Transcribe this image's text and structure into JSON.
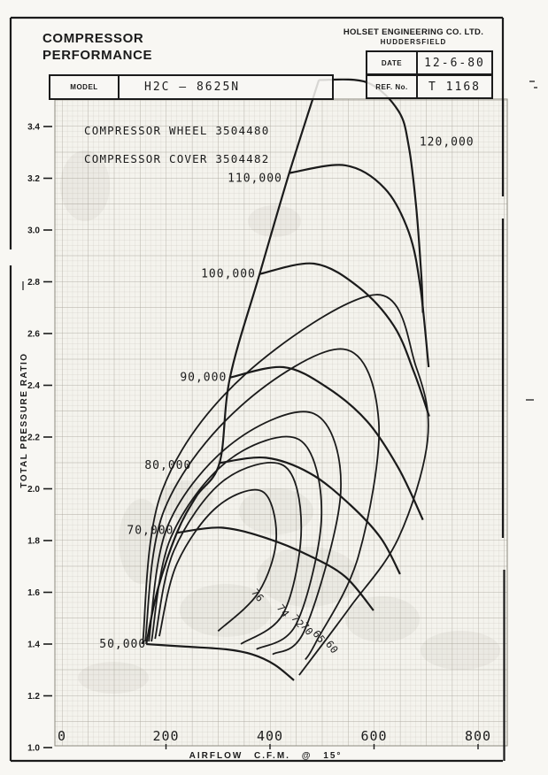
{
  "header": {
    "title_line1": "COMPRESSOR",
    "title_line2": "PERFORMANCE",
    "model_label": "MODEL",
    "model_value": "H2C — 8625N",
    "company_line1": "HOLSET ENGINEERING CO. LTD.",
    "company_line2": "HUDDERSFIELD",
    "date_label": "DATE",
    "date_value": "12-6-80",
    "ref_label": "REF. No.",
    "ref_value": "T 1168"
  },
  "chart_data": {
    "type": "line",
    "title": "Compressor performance map",
    "annotations": [
      "COMPRESSOR  WHEEL  3504480",
      "COMPRESSOR  COVER  3504482"
    ],
    "xlabel": "AIRFLOW   C.F.M.  @  15°",
    "ylabel": "TOTAL  PRESSURE  RATIO",
    "xlim": [
      0,
      850
    ],
    "ylim": [
      1.0,
      3.5
    ],
    "grid": true,
    "x_ticks": [
      {
        "label": "0",
        "value": 0
      },
      {
        "label": "200",
        "value": 200
      },
      {
        "label": "400",
        "value": 400
      },
      {
        "label": "600",
        "value": 600
      },
      {
        "label": "800",
        "value": 800
      }
    ],
    "y_ticks": [
      {
        "label": "1.0",
        "value": 1.0
      },
      {
        "label": "1.2",
        "value": 1.2
      },
      {
        "label": "1.4",
        "value": 1.4
      },
      {
        "label": "1.6",
        "value": 1.6
      },
      {
        "label": "1.8",
        "value": 1.8
      },
      {
        "label": "2.0",
        "value": 2.0
      },
      {
        "label": "2.2",
        "value": 2.2
      },
      {
        "label": "2.4",
        "value": 2.4
      },
      {
        "label": "2.6",
        "value": 2.6
      },
      {
        "label": "2.8",
        "value": 2.8
      },
      {
        "label": "3.0",
        "value": 3.0
      },
      {
        "label": "3.2",
        "value": 3.2
      },
      {
        "label": "3.4",
        "value": 3.4
      }
    ],
    "surge_line": {
      "points": [
        [
          162,
          1.4
        ],
        [
          184,
          1.61
        ],
        [
          221,
          1.83
        ],
        [
          258,
          1.97
        ],
        [
          303,
          2.1
        ],
        [
          323,
          2.43
        ],
        [
          380,
          2.83
        ],
        [
          437,
          3.22
        ],
        [
          494,
          3.58
        ]
      ]
    },
    "speed_lines": [
      {
        "rpm_label": "50,000",
        "label_at": [
          117,
          1.4
        ],
        "points": [
          [
            162,
            1.4
          ],
          [
            238,
            1.39
          ],
          [
            315,
            1.38
          ],
          [
            366,
            1.36
          ],
          [
            409,
            1.32
          ],
          [
            446,
            1.26
          ]
        ]
      },
      {
        "rpm_label": "70,000",
        "label_at": [
          170,
          1.84
        ],
        "points": [
          [
            221,
            1.83
          ],
          [
            306,
            1.85
          ],
          [
            392,
            1.81
          ],
          [
            477,
            1.74
          ],
          [
            545,
            1.66
          ],
          [
            599,
            1.53
          ]
        ]
      },
      {
        "rpm_label": "80,000",
        "label_at": [
          204,
          2.09
        ],
        "points": [
          [
            303,
            2.1
          ],
          [
            392,
            2.12
          ],
          [
            477,
            2.06
          ],
          [
            553,
            1.94
          ],
          [
            613,
            1.81
          ],
          [
            650,
            1.67
          ]
        ]
      },
      {
        "rpm_label": "90,000",
        "label_at": [
          272,
          2.43
        ],
        "points": [
          [
            323,
            2.43
          ],
          [
            426,
            2.47
          ],
          [
            511,
            2.39
          ],
          [
            587,
            2.26
          ],
          [
            647,
            2.08
          ],
          [
            694,
            1.88
          ]
        ]
      },
      {
        "rpm_label": "100,000",
        "label_at": [
          320,
          2.83
        ],
        "points": [
          [
            380,
            2.83
          ],
          [
            485,
            2.87
          ],
          [
            570,
            2.78
          ],
          [
            638,
            2.63
          ],
          [
            677,
            2.45
          ],
          [
            706,
            2.28
          ]
        ]
      },
      {
        "rpm_label": "110,000",
        "label_at": [
          371,
          3.2
        ],
        "points": [
          [
            437,
            3.22
          ],
          [
            545,
            3.25
          ],
          [
            621,
            3.16
          ],
          [
            667,
            2.99
          ],
          [
            689,
            2.78
          ],
          [
            705,
            2.47
          ]
        ]
      },
      {
        "rpm_label": "120,000",
        "label_at": [
          740,
          3.34
        ],
        "points": [
          [
            494,
            3.58
          ],
          [
            587,
            3.57
          ],
          [
            647,
            3.46
          ],
          [
            667,
            3.32
          ],
          [
            681,
            3.09
          ],
          [
            691,
            2.82
          ],
          [
            694,
            2.68
          ]
        ]
      }
    ],
    "efficiency_contours": [
      {
        "label": "76",
        "label_at": [
          371,
          1.58
        ],
        "points": [
          [
            187,
            1.43
          ],
          [
            221,
            1.71
          ],
          [
            298,
            1.93
          ],
          [
            385,
            1.99
          ],
          [
            412,
            1.81
          ],
          [
            378,
            1.6
          ],
          [
            300,
            1.45
          ]
        ]
      },
      {
        "label": "74",
        "label_at": [
          420,
          1.52
        ],
        "points": [
          [
            179,
            1.42
          ],
          [
            215,
            1.76
          ],
          [
            310,
            2.03
          ],
          [
            426,
            2.09
          ],
          [
            460,
            1.85
          ],
          [
            426,
            1.52
          ],
          [
            344,
            1.4
          ]
        ]
      },
      {
        "label": "72",
        "label_at": [
          448,
          1.48
        ],
        "points": [
          [
            172,
            1.41
          ],
          [
            209,
            1.81
          ],
          [
            320,
            2.11
          ],
          [
            456,
            2.19
          ],
          [
            499,
            1.9
          ],
          [
            451,
            1.48
          ],
          [
            374,
            1.38
          ]
        ]
      },
      {
        "label": "70",
        "label_at": [
          466,
          1.45
        ],
        "points": [
          [
            167,
            1.41
          ],
          [
            204,
            1.86
          ],
          [
            330,
            2.18
          ],
          [
            485,
            2.29
          ],
          [
            536,
            1.99
          ],
          [
            468,
            1.46
          ],
          [
            405,
            1.36
          ]
        ]
      },
      {
        "label": "65",
        "label_at": [
          489,
          1.42
        ],
        "points": [
          [
            160,
            1.41
          ],
          [
            197,
            1.92
          ],
          [
            344,
            2.32
          ],
          [
            541,
            2.54
          ],
          [
            609,
            2.26
          ],
          [
            570,
            1.74
          ],
          [
            489,
            1.41
          ],
          [
            468,
            1.34
          ]
        ]
      },
      {
        "label": "60",
        "label_at": [
          514,
          1.38
        ],
        "points": [
          [
            155,
            1.4
          ],
          [
            192,
            1.99
          ],
          [
            351,
            2.44
          ],
          [
            604,
            2.75
          ],
          [
            681,
            2.47
          ],
          [
            703,
            2.19
          ],
          [
            647,
            1.81
          ],
          [
            553,
            1.54
          ],
          [
            456,
            1.28
          ]
        ]
      }
    ]
  }
}
